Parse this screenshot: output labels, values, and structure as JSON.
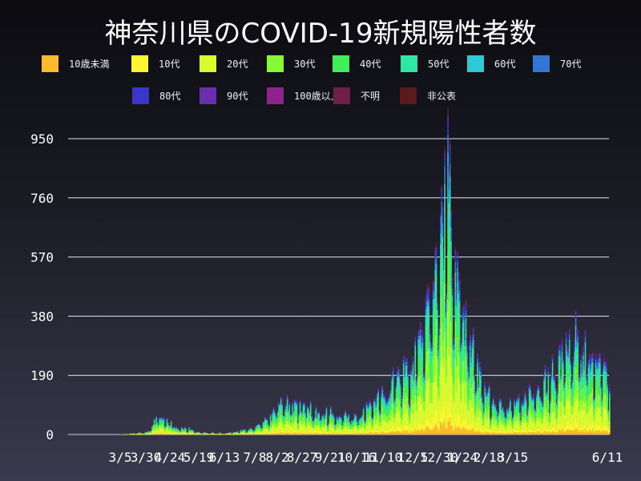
{
  "chart_data": {
    "type": "bar",
    "stacked": true,
    "title": "神奈川県のCOVID-19新規陽性者数",
    "xlabel": "",
    "ylabel": "",
    "ylim": [
      0,
      1000
    ],
    "yticks": [
      0,
      190,
      380,
      570,
      760,
      950
    ],
    "xtick_labels": [
      "3/5",
      "3/30",
      "4/24",
      "5/19",
      "6/13",
      "7/8",
      "8/2",
      "8/27",
      "9/21",
      "10/16",
      "11/10",
      "12/5",
      "12/30",
      "1/24",
      "2/18",
      "3/15",
      "6/11"
    ],
    "grid": true,
    "legend_position": "top",
    "series": [
      {
        "name": "10歳未満",
        "color": "#FDBA2E"
      },
      {
        "name": "10代",
        "color": "#FFF531"
      },
      {
        "name": "20代",
        "color": "#D8FA2E"
      },
      {
        "name": "30代",
        "color": "#86F836"
      },
      {
        "name": "40代",
        "color": "#40EF58"
      },
      {
        "name": "50代",
        "color": "#2FE6A4"
      },
      {
        "name": "60代",
        "color": "#2FC9D6"
      },
      {
        "name": "70代",
        "color": "#3276D6"
      },
      {
        "name": "80代",
        "color": "#3A37C8"
      },
      {
        "name": "90代",
        "color": "#6A2DAD"
      },
      {
        "name": "100歳以上",
        "color": "#8E2390"
      },
      {
        "name": "不明",
        "color": "#6E1F48"
      },
      {
        "name": "非公表",
        "color": "#5A1A1A"
      }
    ],
    "daily_totals_profile": [
      {
        "x": "3/5",
        "total": 2
      },
      {
        "x": "3/30",
        "total": 8
      },
      {
        "x": "4/10",
        "total": 60
      },
      {
        "x": "4/24",
        "total": 30
      },
      {
        "x": "5/19",
        "total": 8
      },
      {
        "x": "6/13",
        "total": 5
      },
      {
        "x": "7/8",
        "total": 20
      },
      {
        "x": "7/25",
        "total": 60
      },
      {
        "x": "8/2",
        "total": 110
      },
      {
        "x": "8/27",
        "total": 85
      },
      {
        "x": "9/21",
        "total": 70
      },
      {
        "x": "10/16",
        "total": 65
      },
      {
        "x": "11/10",
        "total": 150
      },
      {
        "x": "12/5",
        "total": 230
      },
      {
        "x": "12/30",
        "total": 520
      },
      {
        "x": "1/7",
        "total": 990
      },
      {
        "x": "1/15",
        "total": 600
      },
      {
        "x": "1/24",
        "total": 360
      },
      {
        "x": "2/18",
        "total": 110
      },
      {
        "x": "3/15",
        "total": 100
      },
      {
        "x": "4/20",
        "total": 210
      },
      {
        "x": "5/10",
        "total": 320
      },
      {
        "x": "6/11",
        "total": 200
      }
    ]
  }
}
